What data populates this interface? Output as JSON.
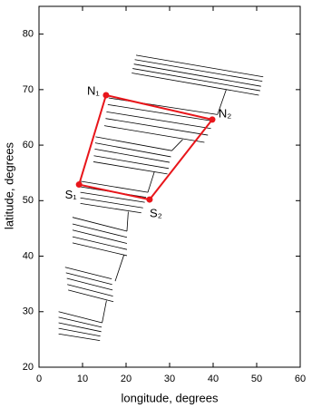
{
  "chart_data": {
    "type": "line",
    "xlabel": "longitude, degrees",
    "ylabel": "latitude, degrees",
    "xlim": [
      0,
      60
    ],
    "ylim": [
      20,
      85
    ],
    "xticks": [
      0,
      10,
      20,
      30,
      40,
      50,
      60
    ],
    "yticks": [
      20,
      30,
      40,
      50,
      60,
      70,
      80
    ],
    "track_color": "#000000",
    "tracks": [
      {
        "x": [
          4.5,
          14.5
        ],
        "y": [
          30.0,
          28.0
        ]
      },
      {
        "x": [
          4.5,
          14.4
        ],
        "y": [
          29.0,
          27.2
        ]
      },
      {
        "x": [
          4.5,
          14.3
        ],
        "y": [
          28.0,
          26.4
        ]
      },
      {
        "x": [
          4.5,
          14.1
        ],
        "y": [
          27.0,
          25.6
        ]
      },
      {
        "x": [
          4.5,
          14.0
        ],
        "y": [
          26.0,
          24.8
        ]
      },
      {
        "x": [
          6.0,
          16.7
        ],
        "y": [
          38.0,
          35.9
        ]
      },
      {
        "x": [
          6.2,
          16.8
        ],
        "y": [
          37.0,
          34.9
        ]
      },
      {
        "x": [
          6.4,
          16.9
        ],
        "y": [
          36.0,
          33.9
        ]
      },
      {
        "x": [
          6.5,
          17.0
        ],
        "y": [
          34.9,
          32.8
        ]
      },
      {
        "x": [
          6.7,
          17.1
        ],
        "y": [
          33.9,
          31.8
        ]
      },
      {
        "x": [
          7.7,
          20.2
        ],
        "y": [
          47.0,
          44.5
        ]
      },
      {
        "x": [
          7.7,
          20.2
        ],
        "y": [
          45.8,
          43.4
        ]
      },
      {
        "x": [
          7.7,
          20.2
        ],
        "y": [
          44.7,
          42.3
        ]
      },
      {
        "x": [
          7.7,
          20.2
        ],
        "y": [
          43.5,
          41.2
        ]
      },
      {
        "x": [
          7.7,
          20.2
        ],
        "y": [
          42.4,
          40.1
        ]
      },
      {
        "x": [
          9.5,
          25.0
        ],
        "y": [
          53.5,
          51.5
        ]
      },
      {
        "x": [
          9.5,
          24.6
        ],
        "y": [
          52.5,
          50.6
        ]
      },
      {
        "x": [
          9.5,
          24.3
        ],
        "y": [
          51.5,
          49.7
        ]
      },
      {
        "x": [
          9.5,
          23.9
        ],
        "y": [
          50.5,
          48.7
        ]
      },
      {
        "x": [
          9.5,
          23.5
        ],
        "y": [
          49.5,
          47.8
        ]
      },
      {
        "x": [
          13.0,
          30.5
        ],
        "y": [
          61.5,
          59.0
        ]
      },
      {
        "x": [
          12.9,
          30.3
        ],
        "y": [
          60.4,
          57.9
        ]
      },
      {
        "x": [
          12.8,
          30.0
        ],
        "y": [
          59.3,
          56.9
        ]
      },
      {
        "x": [
          12.6,
          29.8
        ],
        "y": [
          58.1,
          55.8
        ]
      },
      {
        "x": [
          12.5,
          29.5
        ],
        "y": [
          57.0,
          54.8
        ]
      },
      {
        "x": [
          16.0,
          41.0
        ],
        "y": [
          68.5,
          65.5
        ]
      },
      {
        "x": [
          15.8,
          40.3
        ],
        "y": [
          67.3,
          64.3
        ]
      },
      {
        "x": [
          15.5,
          39.5
        ],
        "y": [
          66.0,
          63.0
        ]
      },
      {
        "x": [
          15.3,
          38.8
        ],
        "y": [
          64.8,
          61.8
        ]
      },
      {
        "x": [
          15.0,
          38.0
        ],
        "y": [
          63.5,
          60.5
        ]
      },
      {
        "x": [
          22.3,
          51.5
        ],
        "y": [
          76.2,
          72.3
        ]
      },
      {
        "x": [
          22.0,
          51.3
        ],
        "y": [
          75.4,
          71.5
        ]
      },
      {
        "x": [
          21.8,
          51.0
        ],
        "y": [
          74.6,
          70.6
        ]
      },
      {
        "x": [
          21.5,
          50.8
        ],
        "y": [
          73.8,
          69.8
        ]
      },
      {
        "x": [
          21.3,
          50.5
        ],
        "y": [
          73.0,
          69.0
        ]
      },
      {
        "x": [
          43.0,
          41.0
        ],
        "y": [
          70.0,
          65.5
        ]
      },
      {
        "x": [
          33.0,
          30.5
        ],
        "y": [
          61.0,
          59.0
        ]
      },
      {
        "x": [
          26.5,
          25.0
        ],
        "y": [
          55.2,
          51.5
        ]
      },
      {
        "x": [
          20.5,
          20.2
        ],
        "y": [
          48.0,
          44.5
        ]
      },
      {
        "x": [
          19.5,
          17.5
        ],
        "y": [
          40.2,
          35.5
        ]
      },
      {
        "x": [
          15.5,
          14.5
        ],
        "y": [
          32.0,
          28.0
        ]
      }
    ],
    "polygon": {
      "color": "#e8161b",
      "labels": [
        "N₁",
        "N₂",
        "S₂",
        "S₁"
      ],
      "x": [
        15.4,
        39.8,
        25.4,
        9.2
      ],
      "y": [
        69.0,
        64.6,
        50.2,
        52.9
      ]
    }
  }
}
